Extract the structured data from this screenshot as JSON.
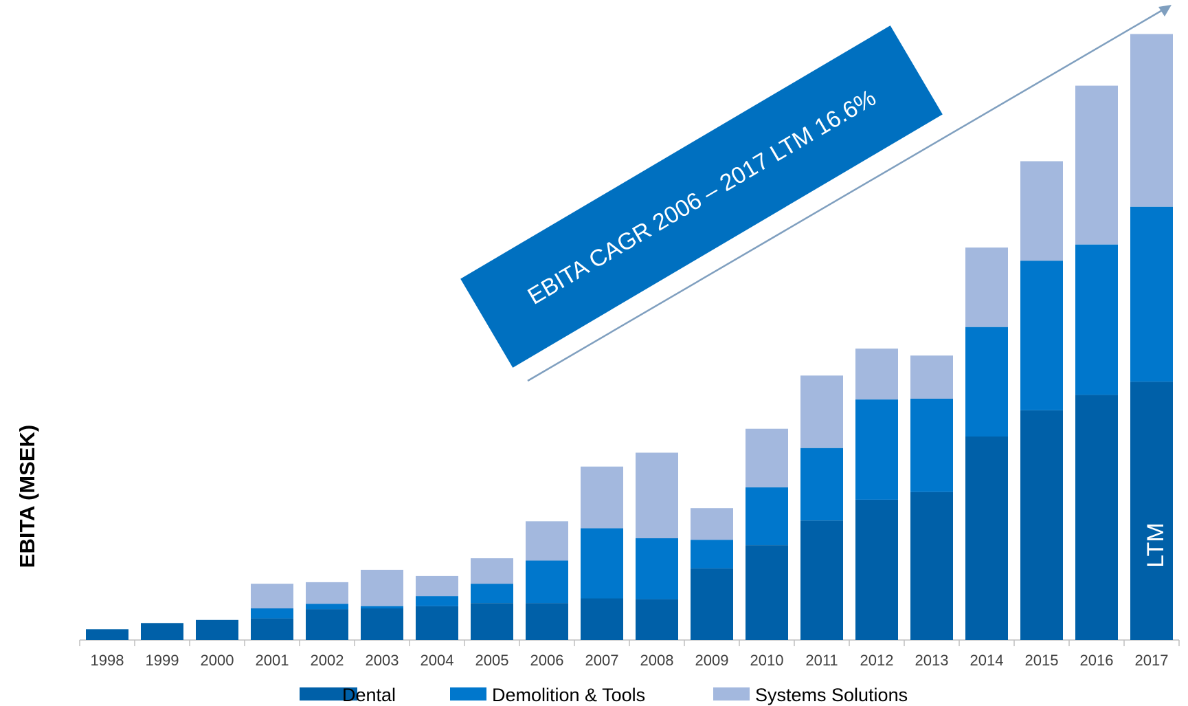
{
  "chart_data": {
    "type": "bar",
    "stacked": true,
    "ylabel": "EBITA (MSEK)",
    "xlabel": "",
    "title": "",
    "categories": [
      "1998",
      "1999",
      "2000",
      "2001",
      "2002",
      "2003",
      "2004",
      "2005",
      "2006",
      "2007",
      "2008",
      "2009",
      "2010",
      "2011",
      "2012",
      "2013",
      "2014",
      "2015",
      "2016",
      "2017"
    ],
    "series": [
      {
        "name": "Dental",
        "color": "#0060a8",
        "values": [
          14,
          22,
          26,
          28,
          40,
          41,
          44,
          48,
          48,
          54,
          53,
          93,
          123,
          155,
          182,
          192,
          264,
          298,
          318,
          335
        ]
      },
      {
        "name": "Demolition & Tools",
        "color": "#0077cc",
        "values": [
          0,
          0,
          0,
          13,
          7,
          3,
          13,
          25,
          55,
          91,
          79,
          37,
          75,
          94,
          130,
          121,
          142,
          194,
          195,
          227
        ]
      },
      {
        "name": "Systems Solutions",
        "color": "#a3b8de",
        "values": [
          0,
          0,
          0,
          32,
          28,
          47,
          26,
          33,
          51,
          80,
          111,
          41,
          76,
          94,
          66,
          56,
          103,
          129,
          206,
          224
        ]
      }
    ],
    "legend_position": "bottom",
    "grid": false,
    "y_axis_visible": false,
    "ylim": [
      0,
      790
    ],
    "annotations": [
      {
        "text": "EBITA CAGR 2006 – 2017 LTM 16.6%"
      },
      {
        "text": "LTM",
        "category": "2017"
      }
    ],
    "colors": {
      "arrow": "#7f9fbf",
      "banner": "#0070c0",
      "axis": "#bfbfbf"
    }
  }
}
